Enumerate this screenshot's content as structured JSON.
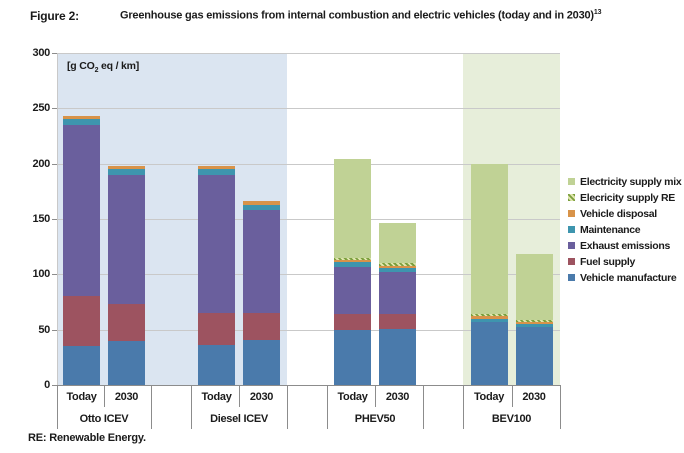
{
  "header": {
    "figure_label": "Figure 2:",
    "title": "Greenhouse gas emissions from internal combustion and electric vehicles (today and in 2030)",
    "title_superscript": "13"
  },
  "footer": {
    "note": "RE: Renewable Energy."
  },
  "chart_data": {
    "type": "bar",
    "stacked": true,
    "title": "Greenhouse gas emissions from internal combustion and electric vehicles (today and in 2030)",
    "unit_label": {
      "pre": "[g CO",
      "sub": "2",
      "post": " eq / km]"
    },
    "ylabel": "g CO2 eq / km",
    "ylim": [
      0,
      300
    ],
    "yticks": [
      0,
      50,
      100,
      150,
      200,
      250,
      300
    ],
    "grid": true,
    "legend_position": "right",
    "series": [
      {
        "key": "manufacture",
        "name": "Vehicle manufacture",
        "color": "#4a7aab",
        "hatch": false
      },
      {
        "key": "fuel",
        "name": "Fuel supply",
        "color": "#9d5360",
        "hatch": false
      },
      {
        "key": "exhaust",
        "name": "Exhaust emissions",
        "color": "#6a5f9d",
        "hatch": false
      },
      {
        "key": "maintenance",
        "name": "Maintenance",
        "color": "#3e95ae",
        "hatch": false
      },
      {
        "key": "disposal",
        "name": "Vehicle disposal",
        "color": "#d89349",
        "hatch": false
      },
      {
        "key": "re",
        "name": "Elecricity supply RE",
        "color": "#7b9f3d",
        "hatch": true
      },
      {
        "key": "mix",
        "name": "Electricity supply mix",
        "color": "#c0d295",
        "hatch": false
      }
    ],
    "legend_order_top_to_bottom": [
      "Electricity supply mix",
      "Elecricity supply RE",
      "Vehicle disposal",
      "Maintenance",
      "Exhaust emissions",
      "Fuel supply",
      "Vehicle manufacture"
    ],
    "groups": [
      {
        "label": "Otto ICEV",
        "bars": [
          {
            "label": "Today",
            "total": 243,
            "values": [
              35,
              45,
              155,
              5,
              3,
              0,
              0
            ]
          },
          {
            "label": "2030",
            "total": 198,
            "values": [
              40,
              33,
              117,
              5,
              3,
              0,
              0
            ]
          }
        ]
      },
      {
        "label": "Diesel ICEV",
        "bars": [
          {
            "label": "Today",
            "total": 198,
            "values": [
              36,
              29,
              125,
              5,
              3,
              0,
              0
            ]
          },
          {
            "label": "2030",
            "total": 166,
            "values": [
              41,
              24,
              93,
              5,
              3,
              0,
              0
            ]
          }
        ]
      },
      {
        "label": "PHEV50",
        "bars": [
          {
            "label": "Today",
            "total": 204,
            "values": [
              50,
              14,
              43,
              4,
              2,
              2,
              89
            ]
          },
          {
            "label": "2030",
            "total": 146,
            "values": [
              51,
              13,
              38,
              4,
              2,
              2,
              36
            ]
          }
        ]
      },
      {
        "label": "BEV100",
        "bars": [
          {
            "label": "Today",
            "total": 200,
            "values": [
              57,
              0,
              0,
              3,
              2,
              2,
              136
            ]
          },
          {
            "label": "2030",
            "total": 118,
            "values": [
              52,
              0,
              0,
              3,
              2,
              2,
              59
            ]
          }
        ]
      }
    ],
    "bands": [
      {
        "groups": [
          0,
          1
        ],
        "color": "#dbe5f1"
      },
      {
        "groups": [
          3,
          3
        ],
        "color": "#e7eeda"
      }
    ]
  }
}
